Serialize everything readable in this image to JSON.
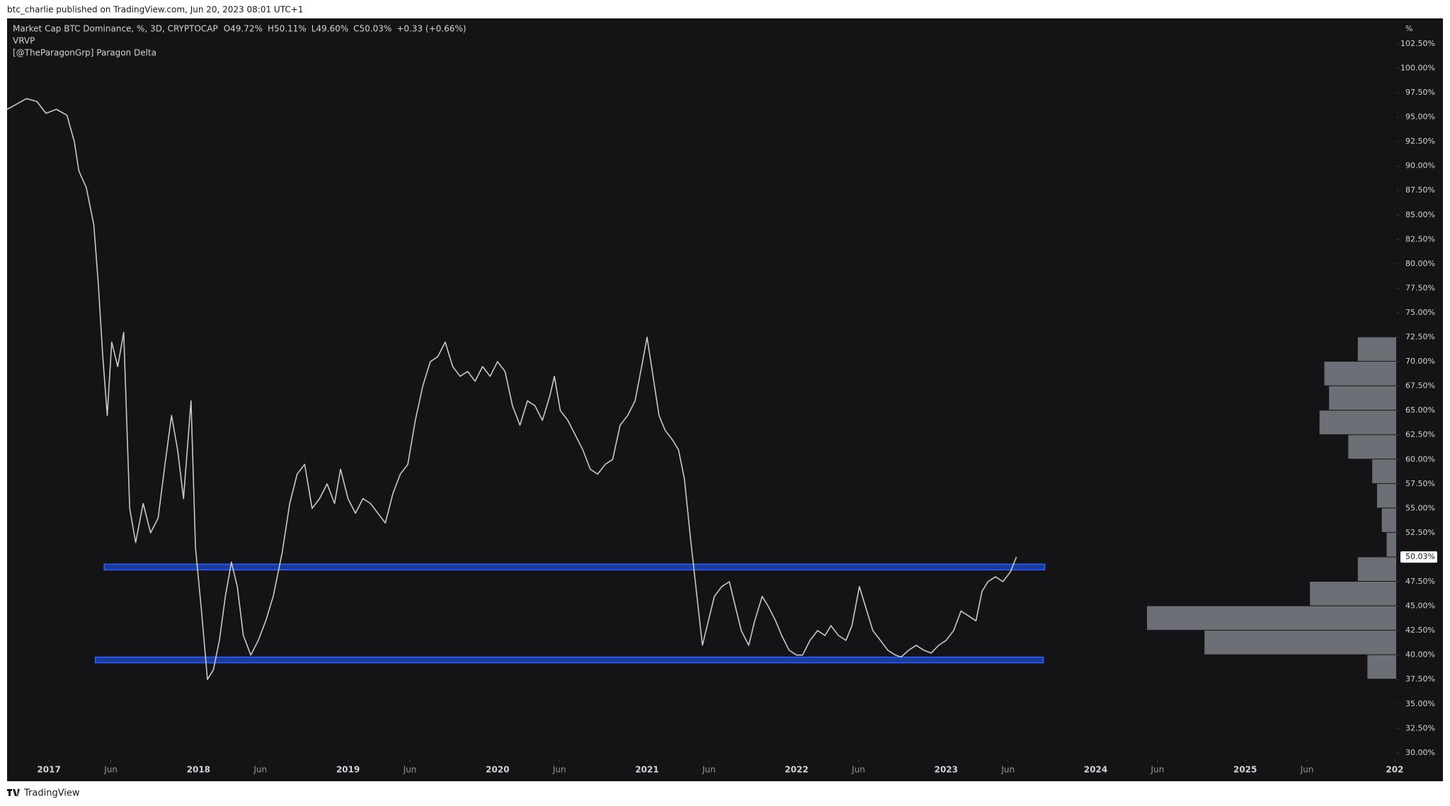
{
  "publisher": "btc_charlie published on TradingView.com, Jun 20, 2023 08:01 UTC+1",
  "footer": "TradingView",
  "chart_data": {
    "type": "line",
    "title": "Market Cap BTC Dominance, %, 3D, CRYPTOCAP",
    "legend_values": [
      "O49.72%",
      "H50.11%",
      "L49.60%",
      "C50.03%",
      "+0.33 (+0.66%)"
    ],
    "indicators": [
      "VRVP",
      "[@TheParagonGrp] Paragon Delta"
    ],
    "y_unit": "%",
    "xlim": [
      2016.72,
      2026.01
    ],
    "ylim": [
      29.34,
      105.1
    ],
    "xticks": [
      2017,
      {
        "value": 2017.414,
        "label": "Jun"
      },
      2018,
      {
        "value": 2018.414,
        "label": "Jun"
      },
      2019,
      {
        "value": 2019.414,
        "label": "Jun"
      },
      2020,
      {
        "value": 2020.414,
        "label": "Jun"
      },
      2021,
      {
        "value": 2021.414,
        "label": "Jun"
      },
      2022,
      {
        "value": 2022.414,
        "label": "Jun"
      },
      2023,
      {
        "value": 2023.414,
        "label": "Jun"
      },
      2024,
      {
        "value": 2024.414,
        "label": "Jun"
      },
      2025,
      {
        "value": 2025.414,
        "label": "Jun"
      },
      {
        "value": 2026,
        "label": "202"
      }
    ],
    "yticks": [
      {
        "value": 30,
        "label": "30.00%"
      },
      {
        "value": 32.5,
        "label": "32.50%"
      },
      {
        "value": 35,
        "label": "35.00%"
      },
      {
        "value": 37.5,
        "label": "37.50%"
      },
      {
        "value": 40,
        "label": "40.00%"
      },
      {
        "value": 42.5,
        "label": "42.50%"
      },
      {
        "value": 45,
        "label": "45.00%"
      },
      {
        "value": 47.5,
        "label": "47.50%"
      },
      {
        "value": 50,
        "label": "50.00%"
      },
      {
        "value": 52.5,
        "label": "52.50%"
      },
      {
        "value": 55,
        "label": "55.00%"
      },
      {
        "value": 57.5,
        "label": "57.50%"
      },
      {
        "value": 60,
        "label": "60.00%"
      },
      {
        "value": 62.5,
        "label": "62.50%"
      },
      {
        "value": 65,
        "label": "65.00%"
      },
      {
        "value": 67.5,
        "label": "67.50%"
      },
      {
        "value": 70,
        "label": "70.00%"
      },
      {
        "value": 72.5,
        "label": "72.50%"
      },
      {
        "value": 75,
        "label": "75.00%"
      },
      {
        "value": 77.5,
        "label": "77.50%"
      },
      {
        "value": 80,
        "label": "80.00%"
      },
      {
        "value": 82.5,
        "label": "82.50%"
      },
      {
        "value": 85,
        "label": "85.00%"
      },
      {
        "value": 87.5,
        "label": "87.50%"
      },
      {
        "value": 90,
        "label": "90.00%"
      },
      {
        "value": 92.5,
        "label": "92.50%"
      },
      {
        "value": 95,
        "label": "95.00%"
      },
      {
        "value": 97.5,
        "label": "97.50%"
      },
      {
        "value": 100,
        "label": "100.00%"
      },
      {
        "value": 102.5,
        "label": "102.50%"
      }
    ],
    "grid": false,
    "series": [
      {
        "name": "Market Cap BTC Dominance",
        "color": "#c9c9c9",
        "x": [
          2016.72,
          2016.78,
          2016.85,
          2016.92,
          2016.98,
          2017.05,
          2017.12,
          2017.17,
          2017.2,
          2017.25,
          2017.3,
          2017.33,
          2017.36,
          2017.39,
          2017.42,
          2017.46,
          2017.5,
          2017.54,
          2017.58,
          2017.63,
          2017.68,
          2017.73,
          2017.78,
          2017.82,
          2017.86,
          2017.9,
          2017.95,
          2017.98,
          2018.02,
          2018.06,
          2018.1,
          2018.14,
          2018.18,
          2018.22,
          2018.26,
          2018.3,
          2018.35,
          2018.4,
          2018.45,
          2018.5,
          2018.56,
          2018.61,
          2018.66,
          2018.71,
          2018.76,
          2018.81,
          2018.86,
          2018.91,
          2018.95,
          2019.0,
          2019.05,
          2019.1,
          2019.15,
          2019.2,
          2019.25,
          2019.3,
          2019.35,
          2019.4,
          2019.45,
          2019.5,
          2019.55,
          2019.6,
          2019.65,
          2019.7,
          2019.75,
          2019.8,
          2019.85,
          2019.9,
          2019.95,
          2020.0,
          2020.05,
          2020.1,
          2020.15,
          2020.2,
          2020.25,
          2020.3,
          2020.35,
          2020.38,
          2020.42,
          2020.47,
          2020.52,
          2020.57,
          2020.62,
          2020.67,
          2020.72,
          2020.77,
          2020.82,
          2020.87,
          2020.92,
          2020.97,
          2021.0,
          2021.04,
          2021.08,
          2021.12,
          2021.17,
          2021.21,
          2021.25,
          2021.29,
          2021.33,
          2021.37,
          2021.41,
          2021.45,
          2021.5,
          2021.55,
          2021.59,
          2021.63,
          2021.68,
          2021.72,
          2021.77,
          2021.81,
          2021.86,
          2021.9,
          2021.95,
          2022.0,
          2022.04,
          2022.09,
          2022.14,
          2022.19,
          2022.23,
          2022.28,
          2022.33,
          2022.37,
          2022.42,
          2022.46,
          2022.51,
          2022.56,
          2022.61,
          2022.66,
          2022.7,
          2022.75,
          2022.8,
          2022.85,
          2022.9,
          2022.95,
          2023.0,
          2023.05,
          2023.1,
          2023.15,
          2023.2,
          2023.24,
          2023.28,
          2023.33,
          2023.38,
          2023.43,
          2023.47
        ],
        "values": [
          95.8,
          96.3,
          96.9,
          96.6,
          95.4,
          95.8,
          95.2,
          92.5,
          89.5,
          87.8,
          84.0,
          78.0,
          70.5,
          64.5,
          72.0,
          69.5,
          73.0,
          55.0,
          51.5,
          55.5,
          52.5,
          54.0,
          60.0,
          64.5,
          61.0,
          56.0,
          66.0,
          51.0,
          44.5,
          37.5,
          38.5,
          41.5,
          46.0,
          49.5,
          47.0,
          42.0,
          40.0,
          41.5,
          43.5,
          46.0,
          50.5,
          55.5,
          58.5,
          59.5,
          55.0,
          56.0,
          57.5,
          55.5,
          59.0,
          56.0,
          54.5,
          56.0,
          55.5,
          54.5,
          53.5,
          56.5,
          58.5,
          59.5,
          64.0,
          67.5,
          70.0,
          70.5,
          72.0,
          69.5,
          68.5,
          69.0,
          68.0,
          69.5,
          68.5,
          70.0,
          69.0,
          65.5,
          63.5,
          66.0,
          65.5,
          64.0,
          66.5,
          68.5,
          65.0,
          64.0,
          62.5,
          61.0,
          59.0,
          58.5,
          59.5,
          60.0,
          63.5,
          64.5,
          66.0,
          70.0,
          72.5,
          68.5,
          64.5,
          63.0,
          62.0,
          61.0,
          58.0,
          52.0,
          46.5,
          41.0,
          43.5,
          46.0,
          47.0,
          47.5,
          45.0,
          42.5,
          41.0,
          43.5,
          46.0,
          45.0,
          43.5,
          42.0,
          40.5,
          40.0,
          40.0,
          41.5,
          42.5,
          42.0,
          43.0,
          42.0,
          41.5,
          43.0,
          47.0,
          45.0,
          42.5,
          41.5,
          40.5,
          40.0,
          39.8,
          40.5,
          41.0,
          40.5,
          40.2,
          41.0,
          41.5,
          42.5,
          44.5,
          44.0,
          43.5,
          46.5,
          47.5,
          48.0,
          47.5,
          48.5,
          50.03
        ]
      }
    ],
    "last_price": {
      "value": 50.03,
      "label": "50.03%",
      "color": "#ffffff"
    },
    "levels": [
      {
        "value": 49.0,
        "x": [
          2017.37,
          2023.66
        ],
        "color": "#2962ff"
      },
      {
        "value": 39.5,
        "x": [
          2017.31,
          2023.65
        ],
        "color": "#2962ff"
      }
    ],
    "volume_profile": {
      "color": "#8a8d96",
      "bins": [
        37.5,
        40,
        42.5,
        45,
        47.5,
        50,
        52.5,
        55,
        57.5,
        60,
        62.5,
        65,
        67.5,
        70,
        72.5
      ],
      "values": [
        30,
        200,
        260,
        90,
        40,
        10,
        15,
        20,
        25,
        50,
        80,
        70,
        75,
        40
      ]
    }
  }
}
